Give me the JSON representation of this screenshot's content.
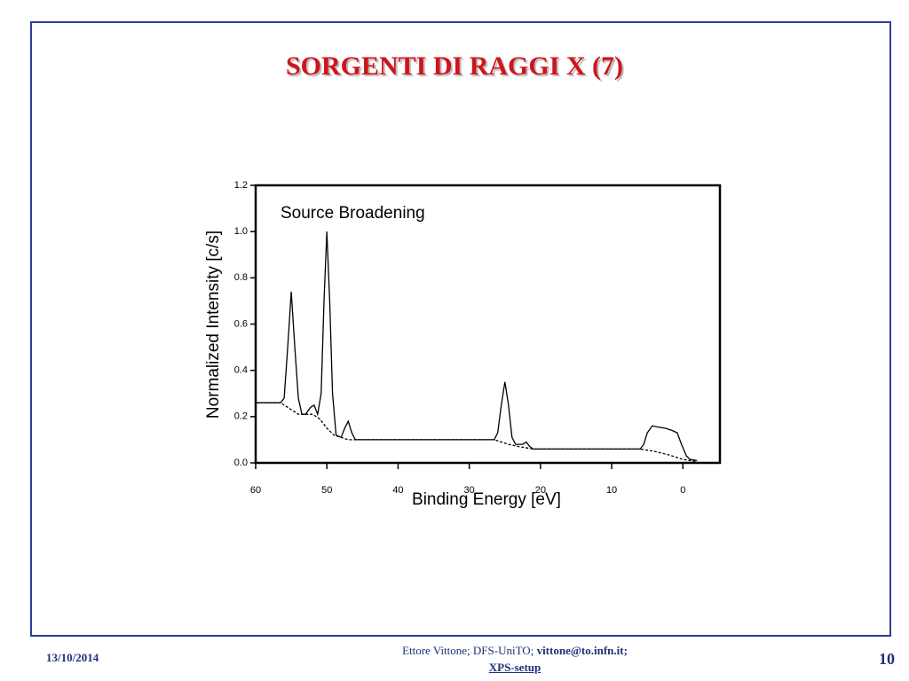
{
  "slide": {
    "title": "SORGENTI DI RAGGI X (7)",
    "date": "13/10/2014",
    "footer_author": "Ettore Vittone; DFS-UniTO;",
    "footer_email": "vittone@to.infn.it;",
    "footer_link": "XPS-setup",
    "page_number": "10"
  },
  "chart_data": {
    "type": "line",
    "title": "Source Broadening",
    "x_label": "Binding Energy [eV]",
    "y_label": "Normalized Intensity [c/s]",
    "xlim": [
      60,
      -5.2
    ],
    "ylim": [
      0,
      1.2
    ],
    "xticks": [
      60,
      50,
      40,
      30,
      20,
      10,
      0
    ],
    "yticks": [
      {
        "value": 0,
        "label": "0.0"
      },
      0.2,
      0.4,
      0.6,
      0.8,
      {
        "value": 1,
        "label": "1.0"
      },
      1.2
    ],
    "series": [
      {
        "color": "#000000",
        "dashed": false,
        "x": [
          60,
          56.5,
          56,
          55.5,
          55,
          54.5,
          54,
          53.5,
          53,
          52.3,
          51.8,
          51.3,
          50.8,
          50.4,
          50,
          49.6,
          49.2,
          48.7,
          48,
          47.5,
          47,
          46.5,
          46,
          26.5,
          26,
          25.5,
          25,
          24.5,
          24,
          23.5,
          22.5,
          22,
          21.5,
          21,
          6,
          5.5,
          5,
          4.3,
          3.5,
          2.5,
          1.5,
          0.8,
          0.2,
          -0.5,
          -1,
          -2
        ],
        "values": [
          0.26,
          0.26,
          0.28,
          0.5,
          0.74,
          0.5,
          0.28,
          0.21,
          0.21,
          0.24,
          0.25,
          0.21,
          0.3,
          0.7,
          1.0,
          0.7,
          0.3,
          0.12,
          0.11,
          0.15,
          0.18,
          0.13,
          0.1,
          0.1,
          0.13,
          0.25,
          0.35,
          0.25,
          0.11,
          0.08,
          0.08,
          0.09,
          0.07,
          0.06,
          0.06,
          0.08,
          0.13,
          0.16,
          0.155,
          0.15,
          0.14,
          0.13,
          0.08,
          0.03,
          0.015,
          0.01
        ]
      },
      {
        "color": "#000000",
        "dashed": true,
        "x": [
          60,
          56.5,
          55,
          54,
          52,
          51,
          50,
          49,
          48,
          47,
          46,
          26.5,
          25.5,
          24.5,
          23,
          21,
          6,
          4,
          2,
          0,
          -2
        ],
        "values": [
          0.26,
          0.26,
          0.23,
          0.21,
          0.21,
          0.19,
          0.15,
          0.12,
          0.11,
          0.1,
          0.1,
          0.1,
          0.09,
          0.08,
          0.07,
          0.06,
          0.06,
          0.05,
          0.035,
          0.015,
          0.005
        ]
      }
    ]
  }
}
